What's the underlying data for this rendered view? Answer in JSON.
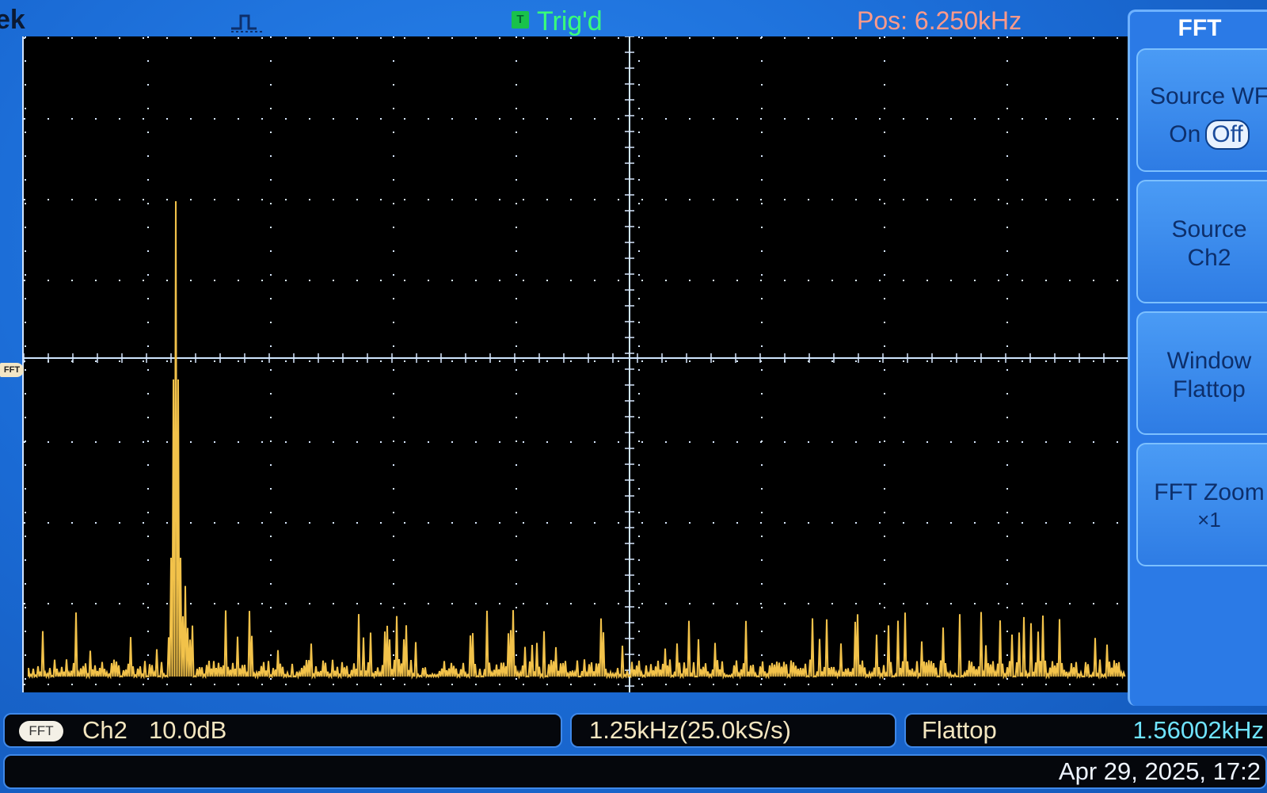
{
  "header": {
    "brand": "ek",
    "trigger_indicator": "T",
    "trigger_status": "Trig'd",
    "position": "Pos: 6.250kHz"
  },
  "graticule": {
    "marker": "FFT"
  },
  "side_menu": {
    "title": "FFT",
    "buttons": [
      {
        "line1": "Source WF",
        "on": "On",
        "off": "Off"
      },
      {
        "line1": "Source",
        "line2": "Ch2"
      },
      {
        "line1": "Window",
        "line2": "Flattop"
      },
      {
        "line1": "FFT Zoom",
        "line2": "×1"
      }
    ]
  },
  "status": {
    "badge": "FFT",
    "channel": "Ch2",
    "scale": "10.0dB",
    "freq_div": "1.25kHz(25.0kS/s)",
    "window": "Flattop",
    "cursor_freq": "1.56002kHz",
    "datetime": "Apr 29, 2025, 17:2"
  },
  "colors": {
    "trace": "#f2c24a",
    "trigger": "#39ff7a",
    "position": "#ff9a8a",
    "grid": "#d8e8ff"
  }
}
